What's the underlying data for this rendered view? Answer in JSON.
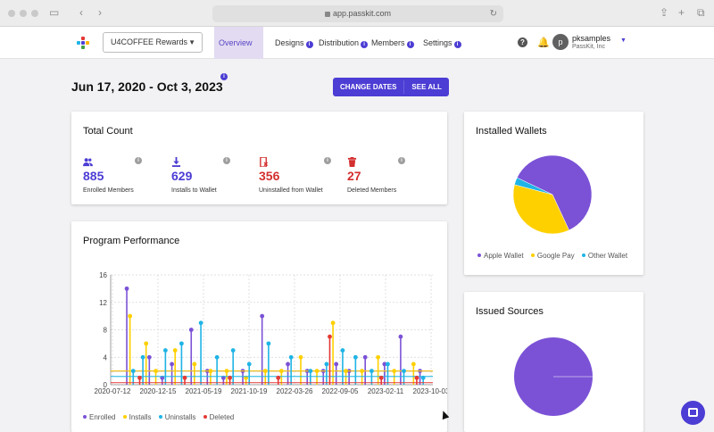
{
  "browser": {
    "url": "app.passkit.com"
  },
  "nav": {
    "program": "U4COFFEE Rewards",
    "tabs": [
      {
        "label": "Overview"
      },
      {
        "label": "Designs"
      },
      {
        "label": "Distribution"
      },
      {
        "label": "Members"
      },
      {
        "label": "Settings"
      }
    ],
    "info_glyph": "i",
    "help_glyph": "?",
    "user": {
      "initial": "p",
      "name": "pksamples",
      "org": "PassKit, Inc"
    }
  },
  "date_range": "Jun 17, 2020 - Oct 3, 2023",
  "buttons": {
    "change_dates": "CHANGE DATES",
    "see_all": "SEE ALL"
  },
  "total_count": {
    "title": "Total Count",
    "stats": [
      {
        "value": "885",
        "label": "Enrolled Members",
        "color": "#4c3dd4",
        "icon": "members-icon"
      },
      {
        "value": "629",
        "label": "Installs to Wallet",
        "color": "#4c3dd4",
        "icon": "download-icon"
      },
      {
        "value": "356",
        "label": "Uninstalled from Wallet",
        "color": "#d32f2f",
        "icon": "uninstall-phone-icon"
      },
      {
        "value": "27",
        "label": "Deleted Members",
        "color": "#d32f2f",
        "icon": "trash-icon"
      }
    ]
  },
  "performance": {
    "title": "Program Performance",
    "legend": [
      "Enrolled",
      "Installs",
      "Uninstalls",
      "Deleted"
    ]
  },
  "wallets": {
    "title": "Installed Wallets",
    "legend": [
      "Apple Wallet",
      "Google Pay",
      "Other Wallet"
    ]
  },
  "sources": {
    "title": "Issued Sources"
  },
  "colors": {
    "enrolled": "#7b52d6",
    "installs": "#ffd000",
    "uninstalls": "#1fb4e6",
    "deleted": "#e53935",
    "apple": "#7b52d6",
    "google": "#ffd000",
    "other": "#1fb4e6"
  },
  "chart_data": [
    {
      "type": "line",
      "title": "Program Performance",
      "x_ticks": [
        "2020-07-12",
        "2020-12-15",
        "2021-05-19",
        "2021-10-19",
        "2022-03-26",
        "2022-09-05",
        "2023-02-11",
        "2023-10-03"
      ],
      "y_ticks": [
        0,
        4,
        8,
        12,
        16
      ],
      "ylim": [
        0,
        16
      ],
      "legend": "bottom-left",
      "grid": true,
      "series": [
        {
          "name": "Enrolled",
          "x": [
            0.05,
            0.12,
            0.16,
            0.19,
            0.25,
            0.3,
            0.35,
            0.41,
            0.47,
            0.55,
            0.61,
            0.66,
            0.7,
            0.74,
            0.79,
            0.85,
            0.9,
            0.96
          ],
          "values": [
            14,
            4,
            1,
            3,
            8,
            2,
            1,
            2,
            10,
            3,
            2,
            2,
            3,
            2,
            4,
            3,
            7,
            2
          ]
        },
        {
          "name": "Installs",
          "x": [
            0.06,
            0.11,
            0.14,
            0.2,
            0.26,
            0.31,
            0.36,
            0.42,
            0.48,
            0.53,
            0.59,
            0.64,
            0.69,
            0.73,
            0.78,
            0.83,
            0.88,
            0.94
          ],
          "values": [
            10,
            6,
            2,
            5,
            3,
            2,
            2,
            1,
            2,
            2,
            4,
            2,
            9,
            2,
            2,
            4,
            2,
            3
          ]
        },
        {
          "name": "Uninstalls",
          "x": [
            0.07,
            0.1,
            0.17,
            0.22,
            0.28,
            0.33,
            0.38,
            0.43,
            0.49,
            0.56,
            0.62,
            0.67,
            0.72,
            0.76,
            0.81,
            0.86,
            0.91,
            0.97
          ],
          "values": [
            2,
            4,
            5,
            6,
            9,
            4,
            5,
            3,
            6,
            4,
            2,
            3,
            5,
            4,
            2,
            3,
            2,
            1
          ]
        },
        {
          "name": "Deleted",
          "x": [
            0.09,
            0.23,
            0.37,
            0.52,
            0.68,
            0.84,
            0.95
          ],
          "values": [
            1,
            1,
            1,
            1,
            7,
            1,
            1
          ]
        }
      ]
    },
    {
      "type": "pie",
      "title": "Installed Wallets",
      "categories": [
        "Apple Wallet",
        "Google Pay",
        "Other Wallet"
      ],
      "values": [
        61,
        36,
        3
      ]
    },
    {
      "type": "pie",
      "title": "Issued Sources",
      "categories": [
        ""
      ],
      "values": [
        100
      ]
    }
  ]
}
